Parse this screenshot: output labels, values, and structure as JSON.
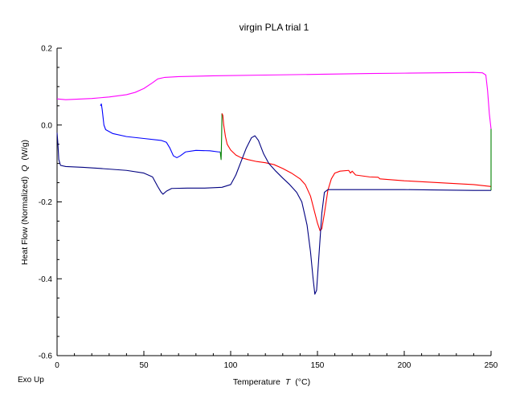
{
  "chart_data": {
    "type": "line",
    "title": "virgin PLA trial 1",
    "xlabel": "Temperature",
    "xlabel_symbol": "T",
    "xlabel_unit": "(°C)",
    "ylabel": "Heat Flow (Normalized)",
    "ylabel_symbol": "Q",
    "ylabel_unit": "(W/g)",
    "corner_label": "Exo Up",
    "xlim": [
      0,
      250
    ],
    "ylim": [
      -0.6,
      0.2
    ],
    "x_ticks": [
      0,
      50,
      100,
      150,
      200,
      250
    ],
    "x_tick_labels": [
      "0",
      "50",
      "100",
      "150",
      "200",
      "250"
    ],
    "y_ticks": [
      -0.6,
      -0.4,
      -0.2,
      0.0,
      0.2
    ],
    "y_tick_labels": [
      "-0.6",
      "-0.4",
      "-0.2",
      "0.0",
      "0.2"
    ],
    "grid": false,
    "series": [
      {
        "color": "#ff00ff",
        "points": [
          [
            0,
            0.068
          ],
          [
            5,
            0.066
          ],
          [
            10,
            0.067
          ],
          [
            20,
            0.069
          ],
          [
            30,
            0.073
          ],
          [
            40,
            0.079
          ],
          [
            45,
            0.085
          ],
          [
            50,
            0.095
          ],
          [
            55,
            0.11
          ],
          [
            58,
            0.12
          ],
          [
            62,
            0.124
          ],
          [
            70,
            0.126
          ],
          [
            90,
            0.128
          ],
          [
            120,
            0.13
          ],
          [
            150,
            0.132
          ],
          [
            180,
            0.134
          ],
          [
            200,
            0.135
          ],
          [
            220,
            0.136
          ],
          [
            240,
            0.137
          ],
          [
            245,
            0.136
          ],
          [
            247,
            0.13
          ],
          [
            248,
            0.09
          ],
          [
            249,
            0.03
          ],
          [
            250,
            -0.01
          ]
        ]
      },
      {
        "color": "#0000ff",
        "points": [
          [
            25,
            0.05
          ],
          [
            25.5,
            0.055
          ],
          [
            26,
            0.04
          ],
          [
            27,
            0.0
          ],
          [
            28,
            -0.012
          ],
          [
            32,
            -0.022
          ],
          [
            40,
            -0.03
          ],
          [
            50,
            -0.035
          ],
          [
            60,
            -0.04
          ],
          [
            63,
            -0.045
          ],
          [
            65,
            -0.06
          ],
          [
            67,
            -0.08
          ],
          [
            69,
            -0.085
          ],
          [
            71,
            -0.08
          ],
          [
            74,
            -0.07
          ],
          [
            80,
            -0.066
          ],
          [
            88,
            -0.067
          ],
          [
            93,
            -0.07
          ],
          [
            94,
            -0.07
          ]
        ]
      },
      {
        "color": "#008000",
        "points": [
          [
            94,
            -0.07
          ],
          [
            94.5,
            -0.09
          ],
          [
            94.8,
            -0.03
          ],
          [
            95,
            0.03
          ]
        ]
      },
      {
        "color": "#ff0000",
        "points": [
          [
            95,
            0.03
          ],
          [
            95.5,
            0.025
          ],
          [
            96,
            0.0
          ],
          [
            97,
            -0.03
          ],
          [
            98,
            -0.05
          ],
          [
            100,
            -0.065
          ],
          [
            103,
            -0.078
          ],
          [
            106,
            -0.085
          ],
          [
            110,
            -0.09
          ],
          [
            115,
            -0.095
          ],
          [
            120,
            -0.098
          ],
          [
            125,
            -0.103
          ],
          [
            130,
            -0.113
          ],
          [
            135,
            -0.125
          ],
          [
            140,
            -0.14
          ],
          [
            143,
            -0.155
          ],
          [
            146,
            -0.185
          ],
          [
            148,
            -0.22
          ],
          [
            150,
            -0.255
          ],
          [
            151.5,
            -0.275
          ],
          [
            152.5,
            -0.27
          ],
          [
            154,
            -0.23
          ],
          [
            156,
            -0.17
          ],
          [
            158,
            -0.14
          ],
          [
            160,
            -0.125
          ],
          [
            163,
            -0.12
          ],
          [
            168,
            -0.118
          ],
          [
            169,
            -0.125
          ],
          [
            170,
            -0.12
          ],
          [
            172,
            -0.13
          ],
          [
            180,
            -0.135
          ],
          [
            185,
            -0.136
          ],
          [
            186,
            -0.14
          ],
          [
            200,
            -0.145
          ],
          [
            220,
            -0.15
          ],
          [
            240,
            -0.155
          ],
          [
            250,
            -0.16
          ]
        ]
      },
      {
        "color": "#000080",
        "points": [
          [
            0,
            -0.02
          ],
          [
            0.5,
            -0.05
          ],
          [
            1,
            -0.09
          ],
          [
            2,
            -0.105
          ],
          [
            5,
            -0.108
          ],
          [
            15,
            -0.11
          ],
          [
            25,
            -0.113
          ],
          [
            40,
            -0.118
          ],
          [
            50,
            -0.125
          ],
          [
            55,
            -0.135
          ],
          [
            58,
            -0.16
          ],
          [
            60,
            -0.175
          ],
          [
            61,
            -0.18
          ],
          [
            63,
            -0.172
          ],
          [
            66,
            -0.165
          ],
          [
            75,
            -0.164
          ],
          [
            85,
            -0.164
          ],
          [
            95,
            -0.162
          ],
          [
            100,
            -0.155
          ],
          [
            103,
            -0.13
          ],
          [
            106,
            -0.095
          ],
          [
            109,
            -0.06
          ],
          [
            112,
            -0.033
          ],
          [
            114,
            -0.028
          ],
          [
            116,
            -0.04
          ],
          [
            119,
            -0.075
          ],
          [
            122,
            -0.1
          ],
          [
            126,
            -0.12
          ],
          [
            130,
            -0.138
          ],
          [
            134,
            -0.155
          ],
          [
            138,
            -0.175
          ],
          [
            141,
            -0.2
          ],
          [
            144,
            -0.26
          ],
          [
            146,
            -0.33
          ],
          [
            147.5,
            -0.4
          ],
          [
            148.5,
            -0.44
          ],
          [
            149.5,
            -0.43
          ],
          [
            151,
            -0.33
          ],
          [
            152.5,
            -0.23
          ],
          [
            154,
            -0.175
          ],
          [
            156,
            -0.168
          ],
          [
            160,
            -0.168
          ],
          [
            180,
            -0.168
          ],
          [
            200,
            -0.168
          ],
          [
            220,
            -0.169
          ],
          [
            240,
            -0.17
          ],
          [
            248,
            -0.17
          ],
          [
            249,
            -0.17
          ],
          [
            250,
            -0.17
          ]
        ]
      },
      {
        "color": "#008000",
        "points": [
          [
            250,
            -0.17
          ],
          [
            250,
            -0.08
          ],
          [
            250,
            -0.01
          ]
        ]
      }
    ]
  }
}
